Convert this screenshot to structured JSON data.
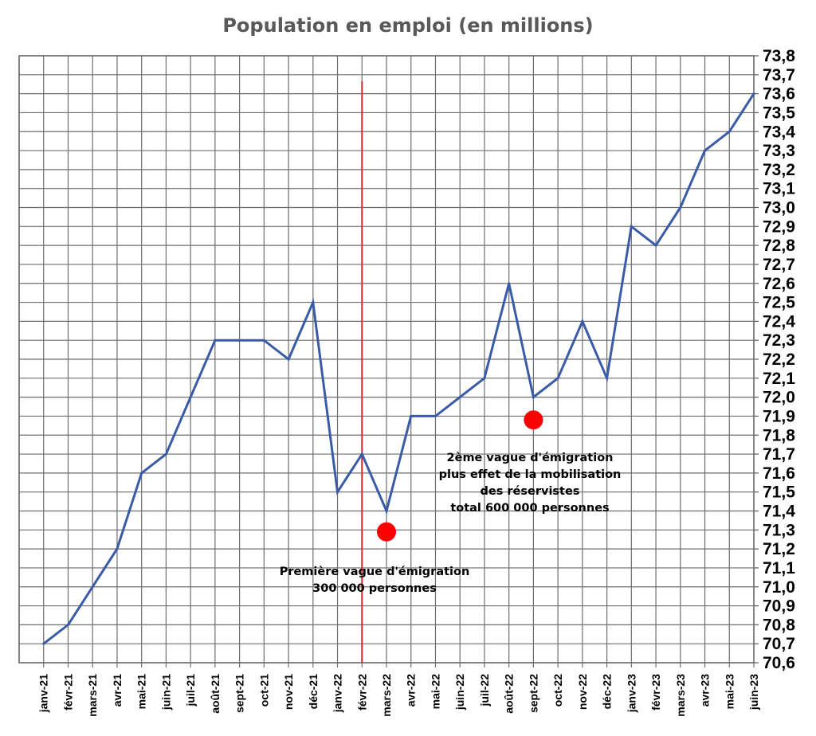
{
  "chart_data": {
    "type": "line",
    "title": "Population en emploi (en millions)",
    "categories": [
      "janv-21",
      "févr-21",
      "mars-21",
      "avr-21",
      "mai-21",
      "juin-21",
      "juil-21",
      "août-21",
      "sept-21",
      "oct-21",
      "nov-21",
      "déc-21",
      "janv-22",
      "févr-22",
      "mars-22",
      "avr-22",
      "mai-22",
      "juin-22",
      "juil-22",
      "août-22",
      "sept-22",
      "oct-22",
      "nov-22",
      "déc-22",
      "janv-23",
      "févr-23",
      "mars-23",
      "avr-23",
      "mai-23",
      "juin-23"
    ],
    "series": [
      {
        "values": [
          70.7,
          70.8,
          71.0,
          71.2,
          71.6,
          71.7,
          72.0,
          72.3,
          72.3,
          72.3,
          72.2,
          72.5,
          71.5,
          71.7,
          71.4,
          71.9,
          71.9,
          72.0,
          72.1,
          72.6,
          72.0,
          72.1,
          72.4,
          72.1,
          72.9,
          72.8,
          73.0,
          73.3,
          73.4,
          73.6
        ],
        "color": "#3a5ba8"
      }
    ],
    "ylim": [
      70.6,
      73.8
    ],
    "ytick_step": 0.1,
    "ytick_labels": [
      "70,6",
      "70,7",
      "70,8",
      "70,9",
      "71,0",
      "71,1",
      "71,2",
      "71,3",
      "71,4",
      "71,5",
      "71,6",
      "71,7",
      "71,8",
      "71,9",
      "72,0",
      "72,1",
      "72,2",
      "72,3",
      "72,4",
      "72,5",
      "72,6",
      "72,7",
      "72,8",
      "72,9",
      "73,0",
      "73,1",
      "73,2",
      "73,3",
      "73,4",
      "73,5",
      "73,6",
      "73,7",
      "73,8"
    ],
    "y_axis_side": "right",
    "grid": true,
    "vertical_marker": {
      "at": "févr-22",
      "color": "#e3262b"
    },
    "markers": [
      {
        "x": "mars-22",
        "y": 71.29,
        "color": "#ff0000"
      },
      {
        "x": "sept-22",
        "y": 71.88,
        "color": "#ff0000"
      }
    ],
    "annotations": [
      {
        "lines": [
          "Première vague d'émigration",
          "300 000 personnes"
        ],
        "near": "mars-22"
      },
      {
        "lines": [
          "2ème vague d'émigration",
          "plus effet de la mobilisation",
          "des réservistes",
          "total 600 000 personnes"
        ],
        "near": "sept-22"
      }
    ]
  }
}
